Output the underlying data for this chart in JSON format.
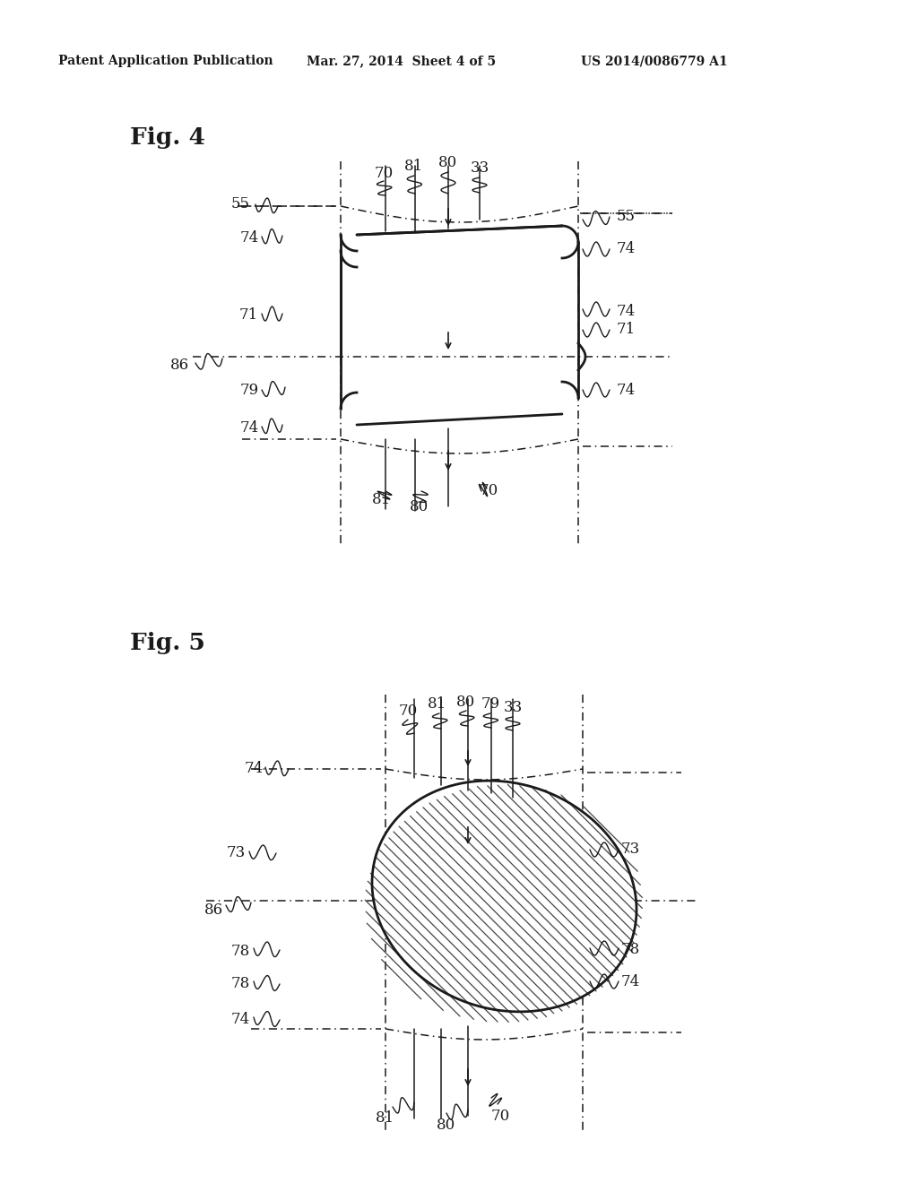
{
  "background_color": "#ffffff",
  "header_text": "Patent Application Publication",
  "header_date": "Mar. 27, 2014  Sheet 4 of 5",
  "header_patent": "US 2014/0086779 A1",
  "fig4_label": "Fig. 4",
  "fig5_label": "Fig. 5"
}
